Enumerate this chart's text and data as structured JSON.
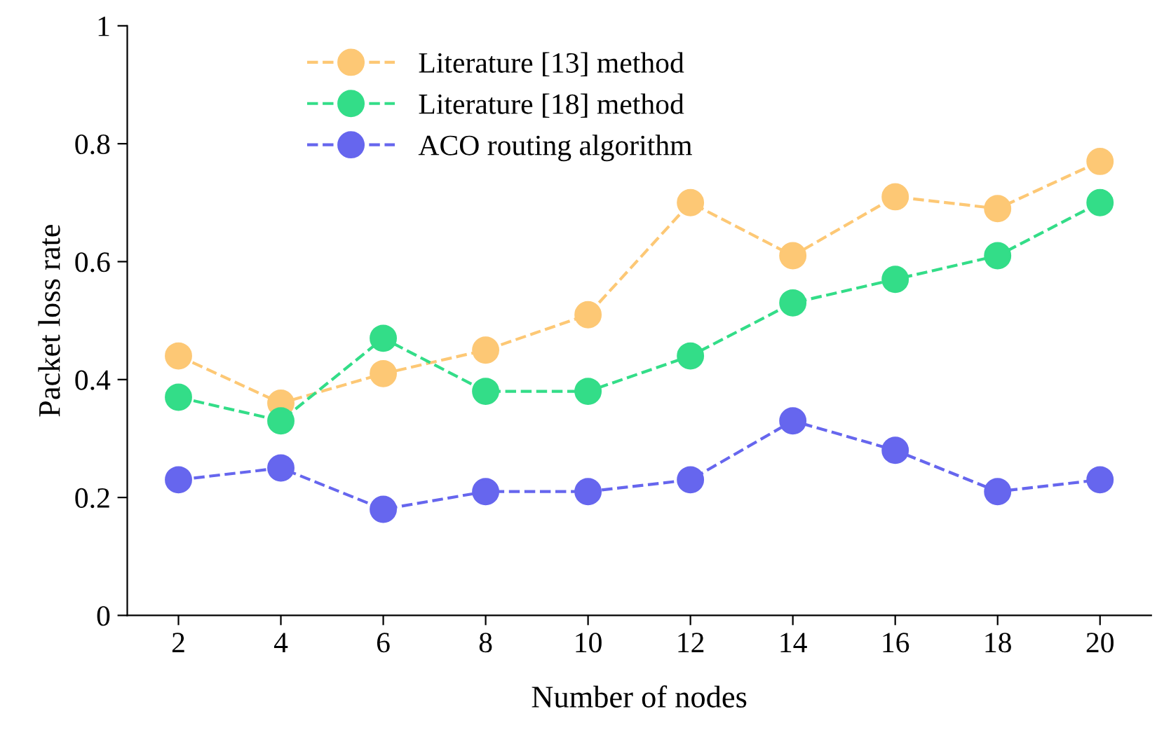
{
  "chart_data": {
    "type": "line",
    "xlabel": "Number of nodes",
    "ylabel": "Packet loss rate",
    "categories": [
      "2",
      "4",
      "6",
      "8",
      "10",
      "12",
      "14",
      "16",
      "18",
      "20"
    ],
    "series": [
      {
        "name": "Literature [13] method",
        "color": "#fdc875",
        "values": [
          0.44,
          0.36,
          0.41,
          0.45,
          0.51,
          0.7,
          0.61,
          0.71,
          0.69,
          0.77
        ]
      },
      {
        "name": "Literature [18] method",
        "color": "#33dd88",
        "values": [
          0.37,
          0.33,
          0.47,
          0.38,
          0.38,
          0.44,
          0.53,
          0.57,
          0.61,
          0.7
        ]
      },
      {
        "name": "ACO routing algorithm",
        "color": "#6666ee",
        "values": [
          0.23,
          0.25,
          0.18,
          0.21,
          0.21,
          0.23,
          0.33,
          0.28,
          0.21,
          0.23
        ]
      }
    ],
    "ylim": [
      0,
      1
    ],
    "yticks": [
      0,
      0.2,
      0.4,
      0.6,
      0.8,
      1
    ],
    "grid": false,
    "legend": "top left",
    "marker": "circle",
    "line_style": "dashed"
  }
}
